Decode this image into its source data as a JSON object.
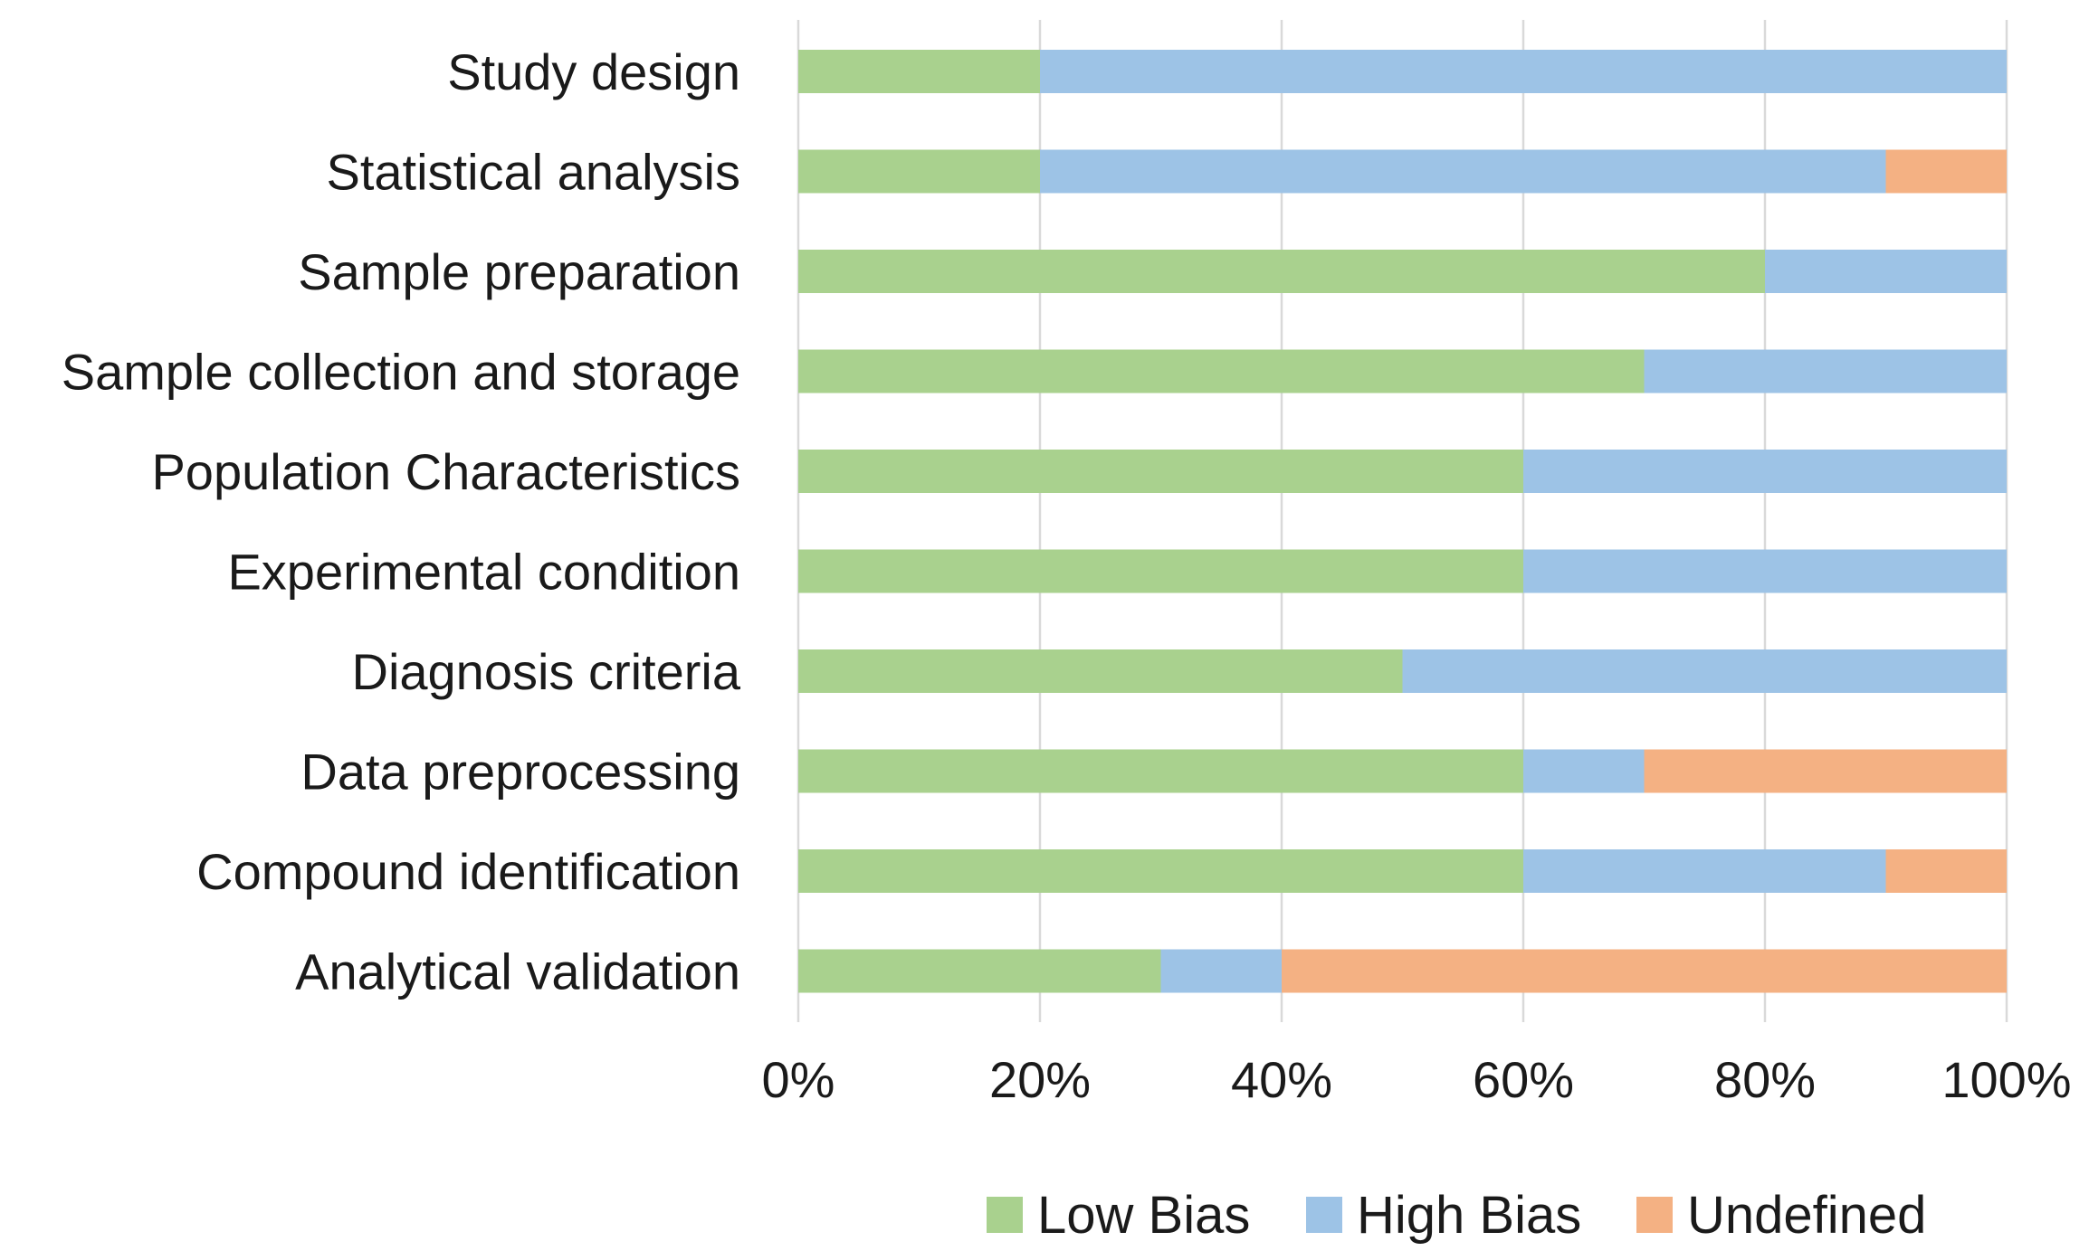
{
  "chart_data": {
    "type": "bar",
    "orientation": "horizontal",
    "stacked": "percent",
    "title": "",
    "xlabel": "",
    "ylabel": "",
    "xlim": [
      0,
      100
    ],
    "xticks": [
      "0%",
      "20%",
      "40%",
      "60%",
      "80%",
      "100%"
    ],
    "xtick_values": [
      0,
      20,
      40,
      60,
      80,
      100
    ],
    "grid": true,
    "legend_position": "bottom",
    "categories": [
      "Study design",
      "Statistical analysis",
      "Sample preparation",
      "Sample collection and storage",
      "Population Characteristics",
      "Experimental condition",
      "Diagnosis criteria",
      "Data preprocessing",
      "Compound identification",
      "Analytical validation"
    ],
    "series": [
      {
        "name": "Low Bias",
        "color": "#a9d18e",
        "values": [
          20,
          20,
          80,
          70,
          60,
          60,
          50,
          60,
          60,
          30
        ]
      },
      {
        "name": "High Bias",
        "color": "#9dc3e6",
        "values": [
          80,
          70,
          20,
          30,
          40,
          40,
          50,
          10,
          30,
          10
        ]
      },
      {
        "name": "Undefined",
        "color": "#f4b183",
        "values": [
          0,
          10,
          0,
          0,
          0,
          0,
          0,
          30,
          10,
          60
        ]
      }
    ]
  },
  "colors": {
    "gridline": "#d9d9d9",
    "text": "#1a1a1a"
  }
}
